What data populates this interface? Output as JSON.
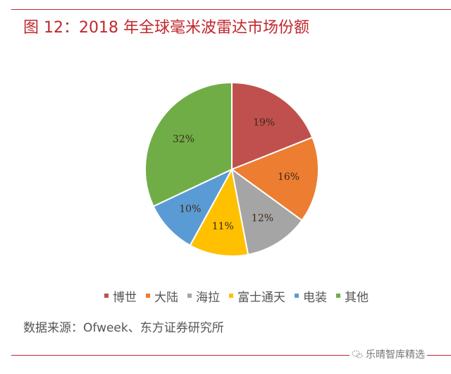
{
  "header": {
    "title": "图 12：2018 年全球毫米波雷达市场份额"
  },
  "chart_data": {
    "type": "pie",
    "title": "2018 年全球毫米波雷达市场份额",
    "categories": [
      "博世",
      "大陆",
      "海拉",
      "富士通天",
      "电装",
      "其他"
    ],
    "values": [
      19,
      16,
      12,
      11,
      10,
      32
    ],
    "labels": [
      "19%",
      "16%",
      "12%",
      "11%",
      "10%",
      "32%"
    ],
    "colors": [
      "#C0504D",
      "#ED7D31",
      "#A5A5A5",
      "#FFC000",
      "#5B9BD5",
      "#70AD47"
    ],
    "start_angle": "12 o'clock, clockwise",
    "legend_position": "bottom"
  },
  "legend": {
    "items": [
      {
        "label": "博世",
        "color": "#C0504D"
      },
      {
        "label": "大陆",
        "color": "#ED7D31"
      },
      {
        "label": "海拉",
        "color": "#A5A5A5"
      },
      {
        "label": "富士通天",
        "color": "#FFC000"
      },
      {
        "label": "电装",
        "color": "#5B9BD5"
      },
      {
        "label": "其他",
        "color": "#70AD47"
      }
    ]
  },
  "footer": {
    "source": "数据来源：Ofweek、东方证券研究所",
    "watermark": "乐晴智库精选"
  }
}
